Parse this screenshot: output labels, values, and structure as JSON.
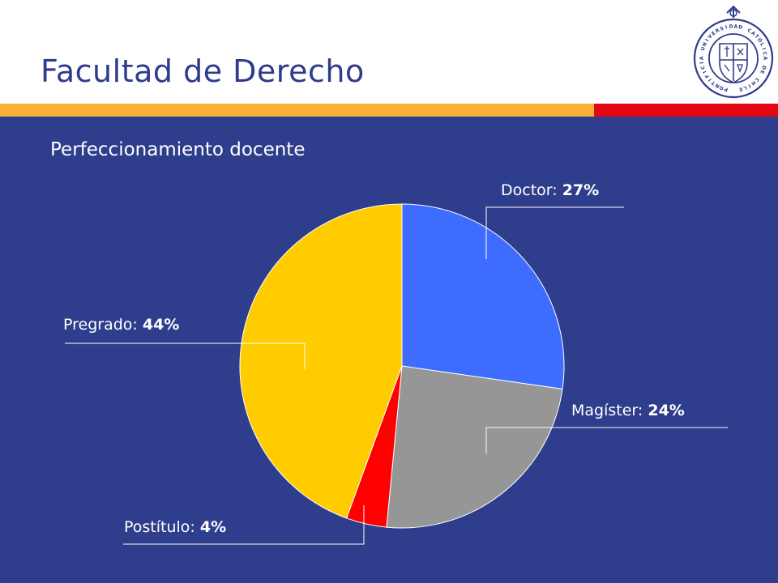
{
  "header": {
    "title": "Facultad de Derecho",
    "logo_text": "PONTIFICIA UNIVERSIDAD CATÓLICA DE CHILE"
  },
  "colors": {
    "background": "#2f3e8c",
    "title": "#2d3c8c",
    "stripe_orange": "#f9b233",
    "stripe_red": "#e30613",
    "callout_line": "#ffffff"
  },
  "subtitle": "Perfeccionamiento docente",
  "chart_data": {
    "type": "pie",
    "slices": [
      {
        "category": "Doctor",
        "value": 27,
        "display": "27%",
        "color": "#3d6cff"
      },
      {
        "category": "Magíster",
        "value": 24,
        "display": "24%",
        "color": "#969696"
      },
      {
        "category": "Postítulo",
        "value": 4,
        "display": "4%",
        "color": "#ff0000"
      },
      {
        "category": "Pregrado",
        "value": 44,
        "display": "44%",
        "color": "#ffcc00"
      }
    ],
    "start": "12 o'clock",
    "direction": "clockwise",
    "label_separator": ": ",
    "legend": "none"
  }
}
